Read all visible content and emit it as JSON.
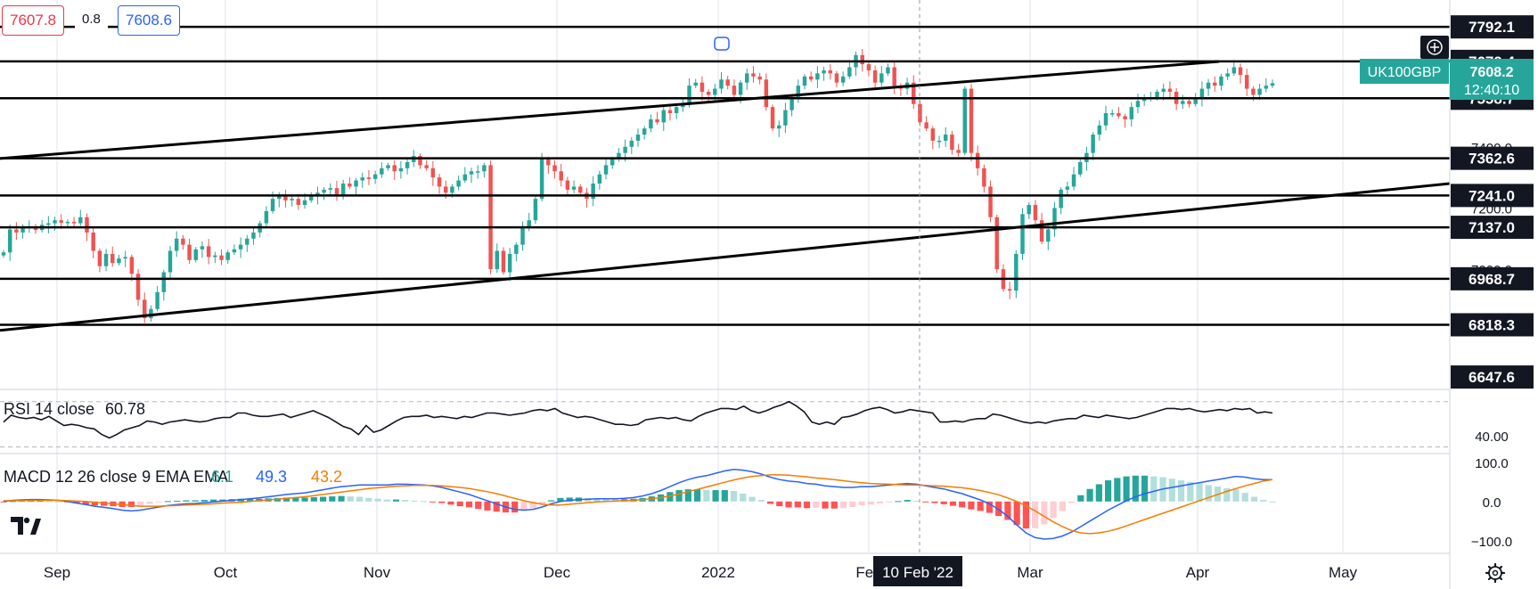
{
  "header": {
    "bid": "7607.8",
    "spread": "0.8",
    "ask": "7608.6"
  },
  "symbol": {
    "name": "UK100GBP",
    "price": "7608.2",
    "countdown": "12:40:10",
    "color": "#26a69a"
  },
  "crosshair": {
    "date_label": "10 Feb '22"
  },
  "colors": {
    "up": "#26a69a",
    "down": "#ef5350",
    "rsi_line": "#131722",
    "macd_line": "#2962ff",
    "signal_line": "#f57c00",
    "hist_pos_strong": "#26a69a",
    "hist_pos_weak": "#b2dfdb",
    "hist_neg_strong": "#ff5252",
    "hist_neg_weak": "#ffcdd2",
    "trendline": "#000000"
  },
  "chart_data": [
    {
      "type": "candlestick",
      "symbol": "UK100GBP",
      "x_labels": [
        "Sep",
        "Oct",
        "Nov",
        "Dec",
        "2022",
        "Feb",
        "Mar",
        "Apr",
        "May"
      ],
      "y_tick_labels": [
        "7400.0",
        "7200.0",
        "7000.0"
      ],
      "price_levels": [
        "7792.1",
        "7679.4",
        "7558.7",
        "7362.6",
        "7241.0",
        "7137.0",
        "6968.7",
        "6818.3",
        "6647.6"
      ],
      "ylim": [
        6610,
        7880
      ],
      "candles_close": [
        7055,
        7130,
        7120,
        7135,
        7140,
        7128,
        7145,
        7150,
        7160,
        7152,
        7155,
        7150,
        7170,
        7120,
        7060,
        7010,
        7050,
        7020,
        7035,
        7040,
        6985,
        6900,
        6840,
        6870,
        6925,
        6990,
        7060,
        7100,
        7080,
        7030,
        7065,
        7075,
        7040,
        7045,
        7030,
        7055,
        7065,
        7080,
        7100,
        7120,
        7150,
        7190,
        7230,
        7240,
        7225,
        7230,
        7210,
        7225,
        7240,
        7250,
        7260,
        7265,
        7240,
        7280,
        7270,
        7290,
        7300,
        7295,
        7310,
        7330,
        7340,
        7320,
        7330,
        7350,
        7370,
        7340,
        7330,
        7300,
        7270,
        7250,
        7270,
        7290,
        7310,
        7320,
        7320,
        7340,
        7000,
        7060,
        6990,
        7050,
        7080,
        7140,
        7160,
        7230,
        7360,
        7340,
        7320,
        7290,
        7260,
        7270,
        7250,
        7230,
        7280,
        7310,
        7340,
        7360,
        7380,
        7400,
        7420,
        7440,
        7460,
        7490,
        7480,
        7520,
        7510,
        7530,
        7540,
        7600,
        7610,
        7580,
        7570,
        7590,
        7620,
        7600,
        7570,
        7610,
        7640,
        7630,
        7620,
        7530,
        7460,
        7470,
        7520,
        7560,
        7600,
        7630,
        7620,
        7640,
        7650,
        7640,
        7610,
        7630,
        7660,
        7700,
        7670,
        7650,
        7610,
        7640,
        7660,
        7600,
        7590,
        7610,
        7540,
        7480,
        7460,
        7420,
        7420,
        7440,
        7390,
        7380,
        7590,
        7380,
        7330,
        7270,
        7170,
        7000,
        6935,
        6930,
        7050,
        7180,
        7210,
        7160,
        7090,
        7130,
        7200,
        7260,
        7270,
        7310,
        7350,
        7380,
        7440,
        7470,
        7510,
        7510,
        7500,
        7490,
        7530,
        7550,
        7560,
        7560,
        7580,
        7590,
        7580,
        7540,
        7550,
        7540,
        7560,
        7590,
        7610,
        7600,
        7630,
        7640,
        7660,
        7635,
        7590,
        7570,
        7590,
        7600,
        7608
      ]
    },
    {
      "type": "line",
      "name": "RSI 14 close",
      "value_label": "60.78",
      "y_tick_labels": [
        "40.00"
      ],
      "ylim": [
        25,
        80
      ],
      "values": [
        52,
        58,
        56,
        55,
        56,
        54,
        57,
        53,
        49,
        50,
        49,
        47,
        46,
        41,
        38,
        41,
        45,
        47,
        49,
        53,
        52,
        50,
        52,
        53,
        54,
        53,
        52,
        53,
        55,
        56,
        56,
        60,
        60,
        58,
        57,
        57,
        58,
        59,
        56,
        58,
        60,
        62,
        59,
        56,
        52,
        48,
        46,
        41,
        49,
        43,
        45,
        49,
        53,
        56,
        57,
        57,
        58,
        56,
        57,
        56,
        55,
        57,
        56,
        58,
        60,
        60,
        59,
        58,
        59,
        60,
        62,
        63,
        62,
        64,
        60,
        58,
        56,
        57,
        56,
        54,
        52,
        50,
        50,
        49,
        50,
        54,
        55,
        56,
        55,
        56,
        54,
        53,
        57,
        60,
        62,
        64,
        64,
        63,
        66,
        62,
        60,
        62,
        65,
        67,
        70,
        66,
        61,
        52,
        50,
        52,
        50,
        56,
        57,
        59,
        62,
        64,
        65,
        63,
        60,
        61,
        63,
        62,
        61,
        60,
        52,
        52,
        53,
        52,
        54,
        55,
        55,
        59,
        58,
        56,
        54,
        52,
        51,
        52,
        51,
        53,
        54,
        55,
        55,
        58,
        57,
        56,
        58,
        57,
        56,
        55,
        56,
        58,
        60,
        62,
        64,
        64,
        63,
        64,
        62,
        61,
        62,
        63,
        62,
        64,
        63,
        64,
        60,
        61,
        60
      ]
    },
    {
      "type": "line",
      "name": "MACD 12 26 close 9 EMA EMA",
      "legend_values": {
        "histogram": "6.1",
        "macd": "49.3",
        "signal": "43.2"
      },
      "y_tick_labels": [
        "100.0",
        "0.0",
        "−100.0"
      ],
      "ylim": [
        -130,
        120
      ],
      "macd_values": [
        0,
        3,
        4,
        5,
        5,
        4,
        3,
        0,
        -4,
        -8,
        -12,
        -15,
        -18,
        -22,
        -24,
        -22,
        -18,
        -14,
        -10,
        -8,
        -6,
        -5,
        -3,
        -1,
        1,
        3,
        5,
        7,
        9,
        12,
        15,
        18,
        20,
        22,
        26,
        30,
        34,
        38,
        40,
        42,
        42,
        42,
        42,
        44,
        44,
        43,
        42,
        40,
        36,
        30,
        24,
        18,
        10,
        2,
        -6,
        -14,
        -20,
        -22,
        -20,
        -14,
        -6,
        0,
        3,
        5,
        6,
        7,
        7,
        7,
        8,
        10,
        14,
        20,
        28,
        38,
        48,
        56,
        62,
        66,
        72,
        78,
        82,
        80,
        76,
        70,
        62,
        56,
        52,
        50,
        46,
        44,
        40,
        38,
        36,
        36,
        38,
        38,
        40,
        42,
        44,
        46,
        44,
        40,
        36,
        32,
        26,
        20,
        12,
        4,
        -6,
        -20,
        -38,
        -60,
        -80,
        -92,
        -96,
        -94,
        -88,
        -78,
        -64,
        -50,
        -36,
        -22,
        -10,
        2,
        12,
        20,
        26,
        32,
        36,
        40,
        44,
        48,
        52,
        56,
        60,
        64,
        62,
        58,
        56,
        56
      ],
      "signal_values": [
        2,
        2,
        2,
        3,
        3,
        3,
        3,
        2,
        1,
        0,
        -2,
        -4,
        -6,
        -8,
        -10,
        -12,
        -12,
        -12,
        -11,
        -10,
        -9,
        -8,
        -7,
        -6,
        -4,
        -3,
        -2,
        0,
        2,
        4,
        6,
        8,
        10,
        12,
        15,
        18,
        21,
        24,
        27,
        30,
        33,
        35,
        37,
        39,
        40,
        41,
        41,
        41,
        40,
        38,
        36,
        33,
        29,
        25,
        20,
        14,
        8,
        2,
        -3,
        -7,
        -9,
        -9,
        -7,
        -5,
        -3,
        -1,
        0,
        1,
        2,
        3,
        5,
        7,
        10,
        14,
        19,
        25,
        31,
        37,
        43,
        49,
        55,
        60,
        64,
        66,
        68,
        68,
        67,
        65,
        63,
        60,
        58,
        56,
        53,
        50,
        48,
        46,
        45,
        44,
        43,
        42,
        42,
        41,
        40,
        39,
        37,
        35,
        32,
        28,
        23,
        17,
        9,
        0,
        -11,
        -24,
        -38,
        -52,
        -64,
        -74,
        -80,
        -82,
        -80,
        -76,
        -70,
        -62,
        -54,
        -46,
        -38,
        -30,
        -22,
        -14,
        -6,
        2,
        10,
        18,
        26,
        33,
        40,
        46,
        52,
        56,
        58,
        58,
        57,
        57
      ]
    }
  ]
}
